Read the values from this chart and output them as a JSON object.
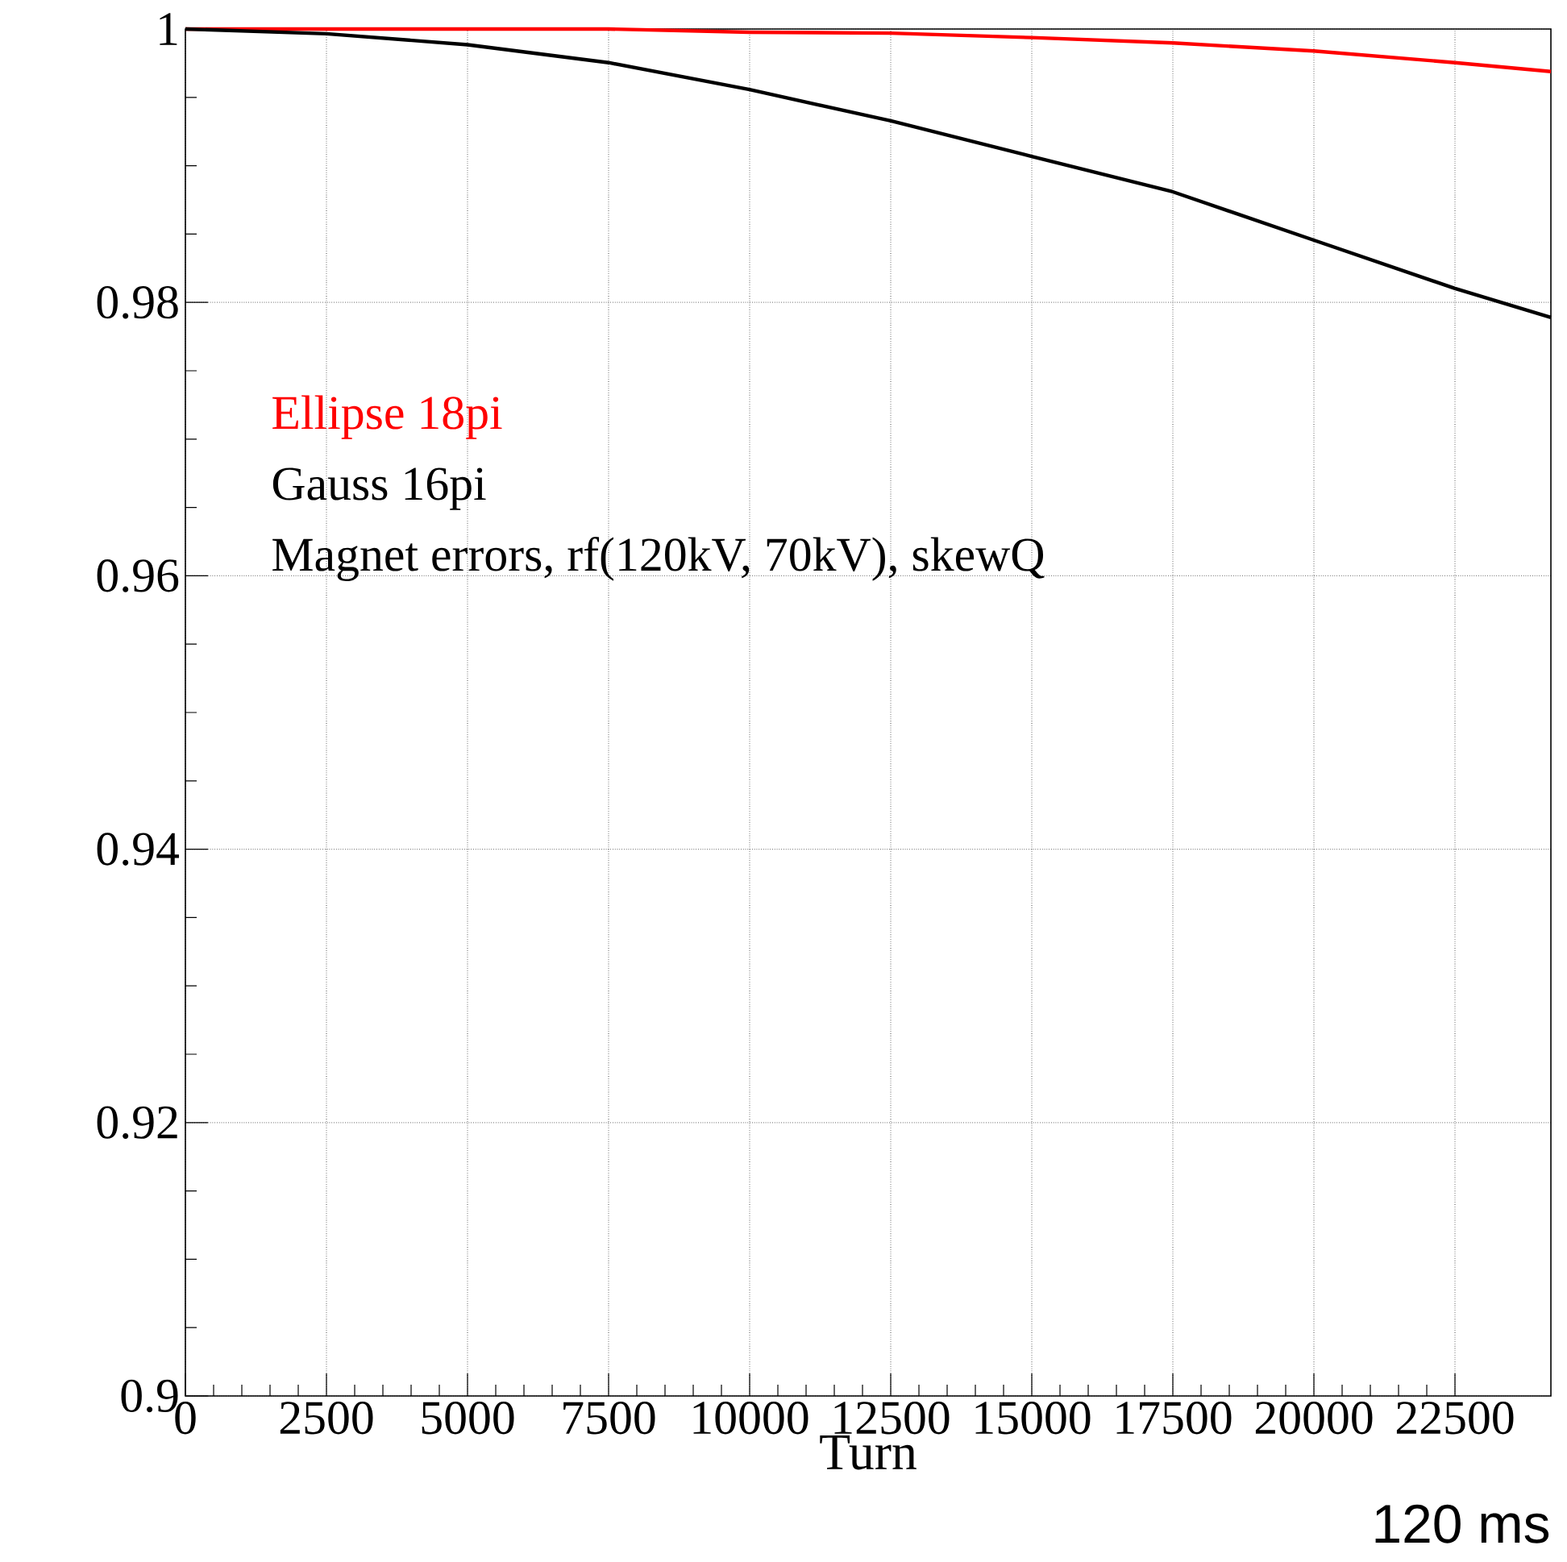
{
  "chart_data": {
    "type": "line",
    "xlabel": "Turn",
    "x": [
      0,
      2500,
      5000,
      7500,
      10000,
      12500,
      15000,
      17500,
      20000,
      22500,
      24200
    ],
    "series": [
      {
        "name": "Ellipse 18pi",
        "color": "#ff0000",
        "values": [
          1.0,
          1.0,
          1.0,
          1.0,
          0.99976,
          0.9997,
          0.99937,
          0.99898,
          0.99839,
          0.99754,
          0.99689
        ]
      },
      {
        "name": "Gauss 16pi",
        "color": "#000000",
        "values": [
          1.0,
          0.99965,
          0.99885,
          0.99754,
          0.99557,
          0.99328,
          0.99068,
          0.98809,
          0.98455,
          0.98102,
          0.9789
        ]
      }
    ],
    "annotations": [
      "Magnet errors, rf(120kV, 70kV), skewQ",
      "120 ms"
    ],
    "xlim": [
      0,
      24200
    ],
    "xticks": [
      0,
      2500,
      5000,
      7500,
      10000,
      12500,
      15000,
      17500,
      20000,
      22500
    ],
    "ylim": [
      0.9,
      1
    ],
    "yticks": [
      0.9,
      0.92,
      0.94,
      0.96,
      0.98,
      1
    ],
    "grid": true,
    "legend": "left",
    "marker": "none",
    "line_style": "solid"
  }
}
